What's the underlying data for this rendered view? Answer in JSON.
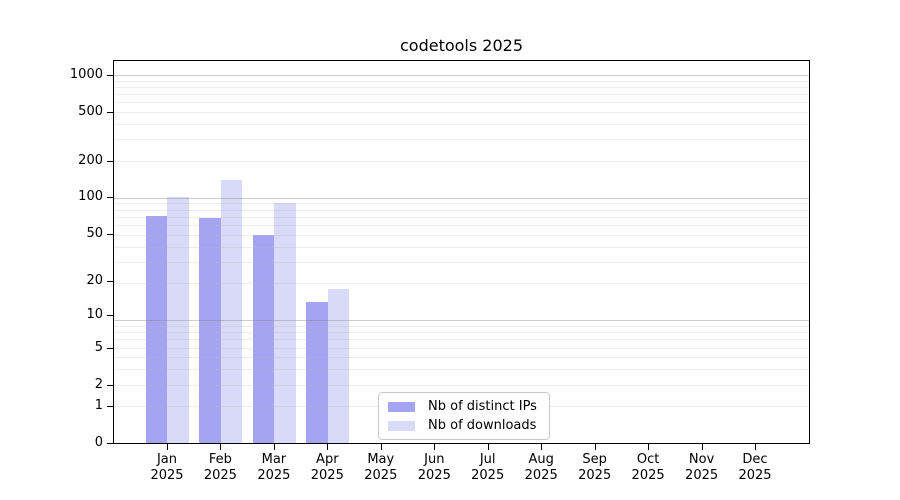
{
  "chart": {
    "title": "codetools 2025",
    "year_label": "2025",
    "legend_position": "lower center"
  },
  "chart_data": {
    "type": "bar",
    "grouped": true,
    "scale": "log1p",
    "title": "codetools 2025",
    "xlabel": "",
    "ylabel": "",
    "grid": "horizontal",
    "categories": [
      "Jan",
      "Feb",
      "Mar",
      "Apr",
      "May",
      "Jun",
      "Jul",
      "Aug",
      "Sep",
      "Oct",
      "Nov",
      "Dec"
    ],
    "category_sublabel": "2025",
    "series": [
      {
        "name": "Nb of distinct IPs",
        "color": "#a4a4f2",
        "values": [
          70,
          67,
          49,
          13,
          0,
          0,
          0,
          0,
          0,
          0,
          0,
          0
        ]
      },
      {
        "name": "Nb of downloads",
        "color": "#d9d9f8",
        "values": [
          100,
          138,
          89,
          17,
          0,
          0,
          0,
          0,
          0,
          0,
          0,
          0
        ]
      }
    ],
    "yticks": [
      0,
      1,
      2,
      5,
      10,
      20,
      50,
      100,
      200,
      500,
      1000
    ],
    "ylim": [
      0,
      1300
    ],
    "minor_grid_positions": [
      2,
      3,
      4,
      5,
      6,
      7,
      8,
      9,
      20,
      30,
      40,
      50,
      60,
      70,
      80,
      90,
      200,
      300,
      400,
      500,
      600,
      700,
      800,
      900
    ],
    "major_grid_positions": [
      10,
      100,
      1000
    ]
  }
}
